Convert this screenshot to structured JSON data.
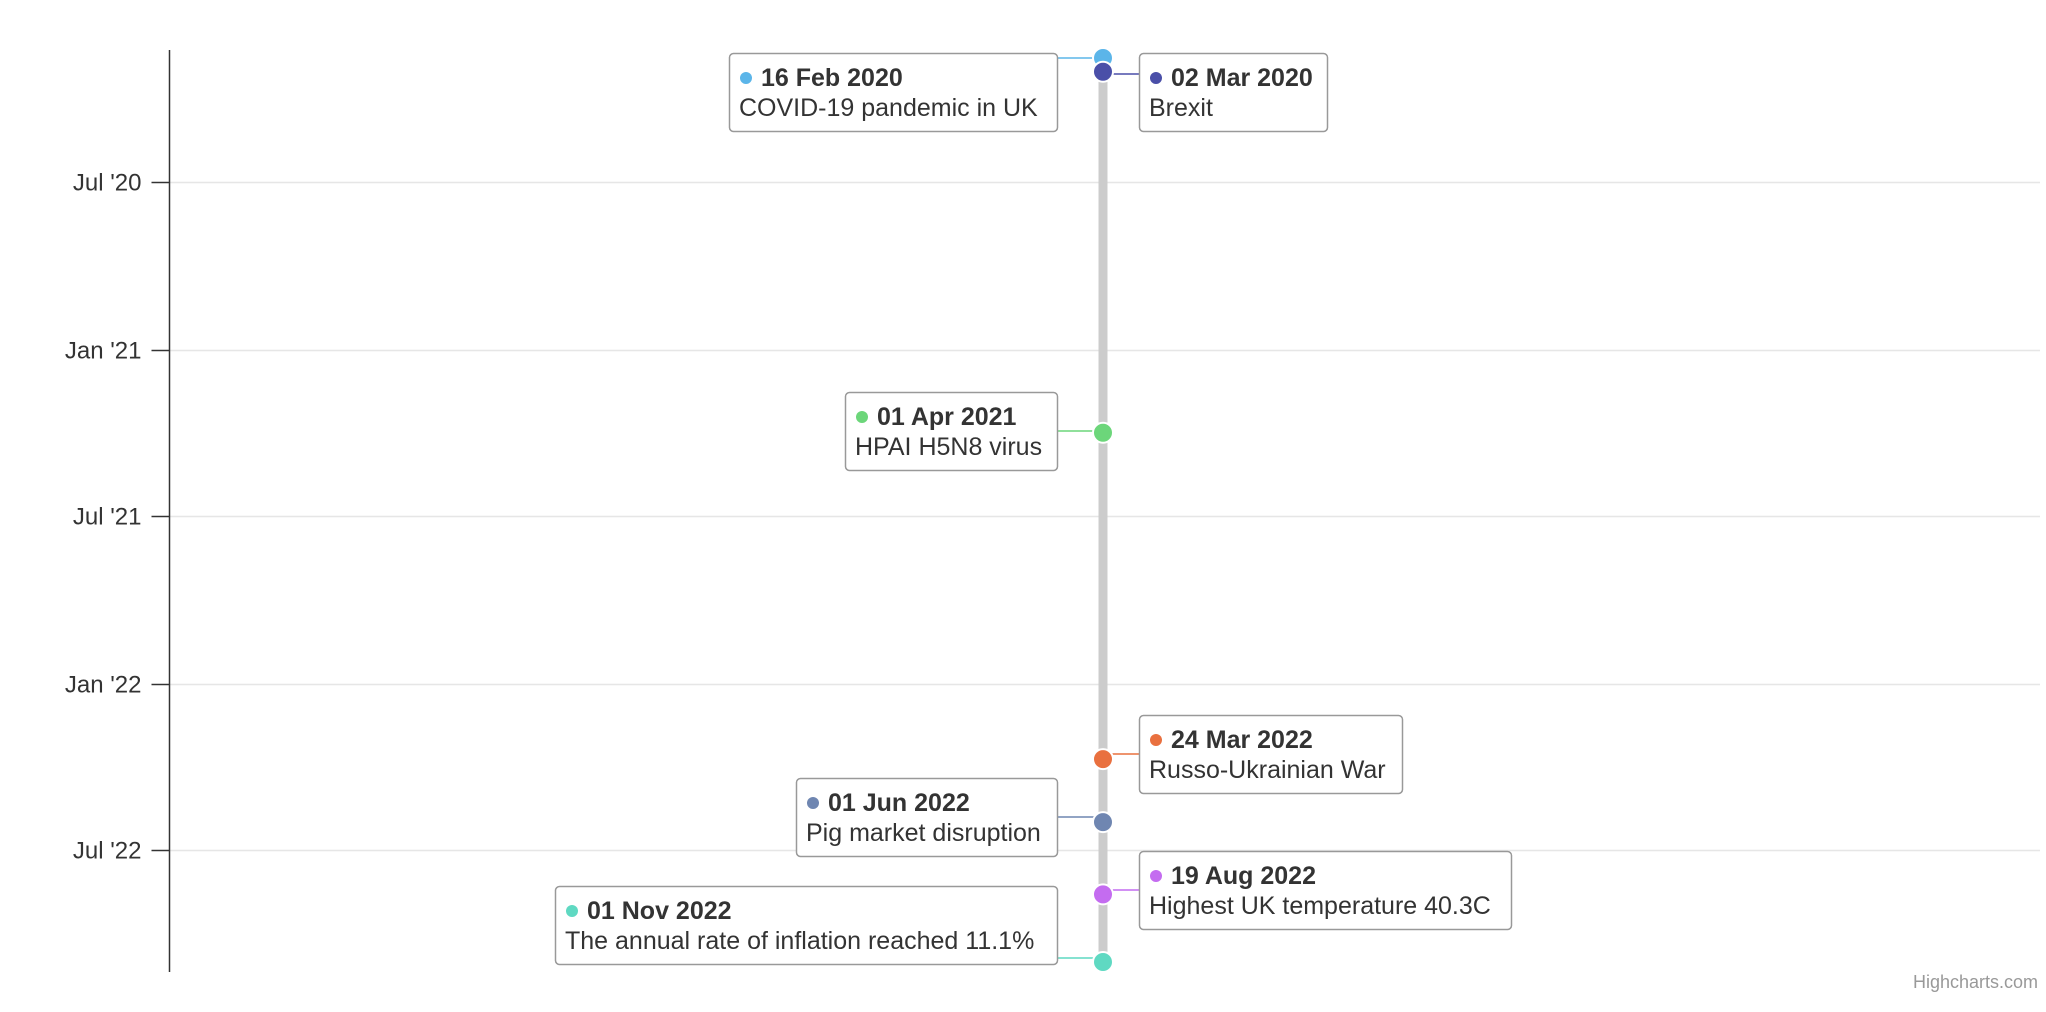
{
  "chart_data": {
    "type": "timeline",
    "orientation": "vertical",
    "grid": true,
    "y_axis": {
      "type": "datetime",
      "range": [
        "2020-02-16",
        "2022-11-01"
      ],
      "ticks": [
        {
          "date": "2020-07-01",
          "label": "Jul '20"
        },
        {
          "date": "2021-01-01",
          "label": "Jan '21"
        },
        {
          "date": "2021-07-01",
          "label": "Jul '21"
        },
        {
          "date": "2022-01-01",
          "label": "Jan '22"
        },
        {
          "date": "2022-07-01",
          "label": "Jul '22"
        }
      ]
    },
    "events": [
      {
        "date": "2020-02-16",
        "label": "16 Feb 2020",
        "description": "COVID-19 pandemic in UK",
        "color": "#5bb5e9",
        "side": "left"
      },
      {
        "date": "2020-03-02",
        "label": "02 Mar 2020",
        "description": "Brexit",
        "color": "#4a4fa8",
        "side": "right"
      },
      {
        "date": "2021-04-01",
        "label": "01 Apr 2021",
        "description": "HPAI H5N8 virus",
        "color": "#6cd67a",
        "side": "left"
      },
      {
        "date": "2022-03-24",
        "label": "24 Mar 2022",
        "description": "Russo-Ukrainian War",
        "color": "#e9703f",
        "side": "right"
      },
      {
        "date": "2022-06-01",
        "label": "01 Jun 2022",
        "description": "Pig market disruption",
        "color": "#6f86b1",
        "side": "left"
      },
      {
        "date": "2022-08-19",
        "label": "19 Aug 2022",
        "description": "Highest UK temperature 40.3C",
        "color": "#c46cf0",
        "side": "right"
      },
      {
        "date": "2022-11-01",
        "label": "01 Nov 2022",
        "description": "The annual rate of inflation reached 11.1%",
        "color": "#5fd9c2",
        "side": "left"
      }
    ]
  },
  "credits": "Highcharts.com"
}
